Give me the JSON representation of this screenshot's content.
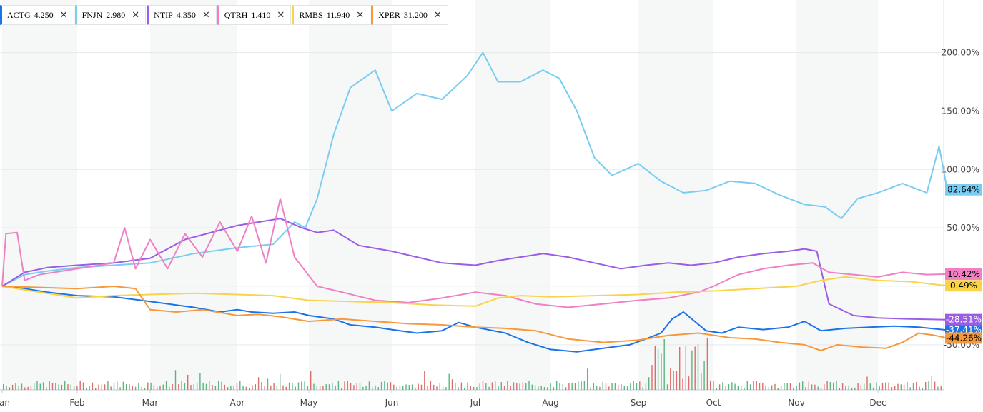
{
  "chart_data": {
    "type": "line",
    "ylim": [
      -60,
      220
    ],
    "y_ticks": [
      -50,
      50,
      100,
      150,
      200
    ],
    "y_tick_labels": [
      "-50.00%",
      "50.00%",
      "100.00%",
      "150.00%",
      "200.00%"
    ],
    "x_months": [
      "Jan",
      "Feb",
      "Mar",
      "Apr",
      "May",
      "Jun",
      "Jul",
      "Aug",
      "Sep",
      "Oct",
      "Nov",
      "Dec"
    ],
    "x_month_labels": [
      "an",
      "Feb",
      "Mar",
      "Apr",
      "May",
      "Jun",
      "Jul",
      "Aug",
      "Sep",
      "Oct",
      "Nov",
      "Dec"
    ],
    "grid": true,
    "legend": "top-left",
    "series": [
      {
        "name": "ACTG",
        "price": "4.250",
        "color": "#1a73e8",
        "end_label": "-37.41%",
        "points": [
          [
            0,
            0
          ],
          [
            0.3,
            -2
          ],
          [
            0.6,
            -5
          ],
          [
            1,
            -8
          ],
          [
            1.5,
            -9
          ],
          [
            2,
            -13
          ],
          [
            2.5,
            -18
          ],
          [
            2.8,
            -22
          ],
          [
            3,
            -20
          ],
          [
            3.2,
            -22
          ],
          [
            3.5,
            -23
          ],
          [
            3.8,
            -22
          ],
          [
            4,
            -25
          ],
          [
            4.3,
            -28
          ],
          [
            4.5,
            -33
          ],
          [
            4.8,
            -35
          ],
          [
            5,
            -37
          ],
          [
            5.3,
            -40
          ],
          [
            5.6,
            -38
          ],
          [
            5.8,
            -31
          ],
          [
            6,
            -35
          ],
          [
            6.4,
            -40
          ],
          [
            6.7,
            -48
          ],
          [
            7,
            -54
          ],
          [
            7.3,
            -56
          ],
          [
            7.6,
            -53
          ],
          [
            7.9,
            -50
          ],
          [
            8.1,
            -45
          ],
          [
            8.3,
            -40
          ],
          [
            8.45,
            -28
          ],
          [
            8.6,
            -22
          ],
          [
            8.75,
            -30
          ],
          [
            8.9,
            -38
          ],
          [
            9.1,
            -40
          ],
          [
            9.3,
            -35
          ],
          [
            9.6,
            -37
          ],
          [
            9.9,
            -35
          ],
          [
            10.1,
            -30
          ],
          [
            10.3,
            -38
          ],
          [
            10.6,
            -36
          ],
          [
            10.9,
            -35
          ],
          [
            11.2,
            -34
          ],
          [
            11.5,
            -35
          ],
          [
            11.85,
            -37.41
          ]
        ]
      },
      {
        "name": "FNJN",
        "price": "2.980",
        "color": "#79cdf2",
        "end_label": "82.64%",
        "points": [
          [
            0,
            0
          ],
          [
            0.3,
            10
          ],
          [
            0.6,
            13
          ],
          [
            1,
            16
          ],
          [
            1.5,
            18
          ],
          [
            2,
            20
          ],
          [
            2.5,
            28
          ],
          [
            3,
            33
          ],
          [
            3.5,
            36
          ],
          [
            3.8,
            55
          ],
          [
            3.95,
            50
          ],
          [
            4.1,
            75
          ],
          [
            4.3,
            130
          ],
          [
            4.5,
            170
          ],
          [
            4.8,
            185
          ],
          [
            5,
            150
          ],
          [
            5.3,
            165
          ],
          [
            5.6,
            160
          ],
          [
            5.9,
            180
          ],
          [
            6.1,
            200
          ],
          [
            6.3,
            175
          ],
          [
            6.6,
            175
          ],
          [
            6.9,
            185
          ],
          [
            7.1,
            178
          ],
          [
            7.3,
            150
          ],
          [
            7.5,
            110
          ],
          [
            7.7,
            95
          ],
          [
            8,
            105
          ],
          [
            8.3,
            90
          ],
          [
            8.6,
            80
          ],
          [
            8.9,
            82
          ],
          [
            9.2,
            90
          ],
          [
            9.5,
            88
          ],
          [
            9.8,
            78
          ],
          [
            10.1,
            70
          ],
          [
            10.35,
            68
          ],
          [
            10.55,
            58
          ],
          [
            10.75,
            75
          ],
          [
            11,
            80
          ],
          [
            11.3,
            88
          ],
          [
            11.6,
            80
          ],
          [
            11.75,
            120
          ],
          [
            11.85,
            82.64
          ]
        ]
      },
      {
        "name": "NTIP",
        "price": "4.350",
        "color": "#9b5de5",
        "end_label": "-28.51%",
        "points": [
          [
            0,
            0
          ],
          [
            0.3,
            12
          ],
          [
            0.6,
            16
          ],
          [
            1,
            18
          ],
          [
            1.5,
            20
          ],
          [
            2,
            24
          ],
          [
            2.4,
            40
          ],
          [
            2.8,
            48
          ],
          [
            3,
            52
          ],
          [
            3.3,
            55
          ],
          [
            3.6,
            58
          ],
          [
            3.9,
            50
          ],
          [
            4.1,
            46
          ],
          [
            4.3,
            48
          ],
          [
            4.6,
            35
          ],
          [
            5,
            30
          ],
          [
            5.3,
            25
          ],
          [
            5.6,
            20
          ],
          [
            6,
            18
          ],
          [
            6.3,
            22
          ],
          [
            6.6,
            25
          ],
          [
            6.9,
            28
          ],
          [
            7.2,
            25
          ],
          [
            7.5,
            20
          ],
          [
            7.8,
            15
          ],
          [
            8.1,
            18
          ],
          [
            8.4,
            20
          ],
          [
            8.7,
            18
          ],
          [
            9,
            20
          ],
          [
            9.3,
            25
          ],
          [
            9.6,
            28
          ],
          [
            9.9,
            30
          ],
          [
            10.1,
            32
          ],
          [
            10.25,
            30
          ],
          [
            10.4,
            -15
          ],
          [
            10.7,
            -25
          ],
          [
            11,
            -27
          ],
          [
            11.4,
            -28
          ],
          [
            11.85,
            -28.51
          ]
        ]
      },
      {
        "name": "QTRH",
        "price": "1.410",
        "color": "#f07fc4",
        "end_label": "10.42%",
        "points": [
          [
            0,
            0
          ],
          [
            0.05,
            45
          ],
          [
            0.2,
            46
          ],
          [
            0.3,
            5
          ],
          [
            0.5,
            10
          ],
          [
            1,
            15
          ],
          [
            1.5,
            20
          ],
          [
            1.65,
            50
          ],
          [
            1.8,
            15
          ],
          [
            2,
            40
          ],
          [
            2.2,
            15
          ],
          [
            2.4,
            45
          ],
          [
            2.6,
            25
          ],
          [
            2.8,
            55
          ],
          [
            3,
            30
          ],
          [
            3.2,
            60
          ],
          [
            3.4,
            20
          ],
          [
            3.6,
            75
          ],
          [
            3.8,
            25
          ],
          [
            4.1,
            0
          ],
          [
            4.4,
            -5
          ],
          [
            4.8,
            -12
          ],
          [
            5.2,
            -14
          ],
          [
            5.6,
            -10
          ],
          [
            6,
            -5
          ],
          [
            6.4,
            -8
          ],
          [
            6.8,
            -15
          ],
          [
            7.2,
            -18
          ],
          [
            7.6,
            -15
          ],
          [
            8,
            -12
          ],
          [
            8.4,
            -10
          ],
          [
            8.8,
            -5
          ],
          [
            9.0,
            0
          ],
          [
            9.3,
            10
          ],
          [
            9.6,
            15
          ],
          [
            9.9,
            18
          ],
          [
            10.2,
            20
          ],
          [
            10.4,
            12
          ],
          [
            10.7,
            10
          ],
          [
            11,
            8
          ],
          [
            11.3,
            12
          ],
          [
            11.6,
            10
          ],
          [
            11.85,
            10.42
          ]
        ]
      },
      {
        "name": "RMBS",
        "price": "11.940",
        "color": "#f9d348",
        "end_label": "0.49%",
        "points": [
          [
            0,
            0
          ],
          [
            0.5,
            -5
          ],
          [
            1,
            -10
          ],
          [
            1.5,
            -8
          ],
          [
            2,
            -7
          ],
          [
            2.5,
            -6
          ],
          [
            3,
            -7
          ],
          [
            3.5,
            -8
          ],
          [
            4,
            -12
          ],
          [
            4.5,
            -13
          ],
          [
            5,
            -14
          ],
          [
            5.5,
            -16
          ],
          [
            6,
            -17
          ],
          [
            6.3,
            -10
          ],
          [
            6.6,
            -8
          ],
          [
            7,
            -9
          ],
          [
            7.5,
            -8
          ],
          [
            8,
            -7
          ],
          [
            8.5,
            -5
          ],
          [
            9,
            -4
          ],
          [
            9.5,
            -2
          ],
          [
            10,
            0
          ],
          [
            10.3,
            5
          ],
          [
            10.6,
            8
          ],
          [
            11,
            5
          ],
          [
            11.4,
            4
          ],
          [
            11.85,
            0.49
          ]
        ]
      },
      {
        "name": "XPER",
        "price": "31.200",
        "color": "#f6983c",
        "end_label": "-44.26%",
        "points": [
          [
            0,
            0
          ],
          [
            0.5,
            -1
          ],
          [
            1,
            -2
          ],
          [
            1.5,
            0
          ],
          [
            1.8,
            -2
          ],
          [
            2,
            -20
          ],
          [
            2.3,
            -22
          ],
          [
            2.6,
            -20
          ],
          [
            3,
            -25
          ],
          [
            3.3,
            -24
          ],
          [
            3.6,
            -26
          ],
          [
            4,
            -30
          ],
          [
            4.4,
            -28
          ],
          [
            4.8,
            -30
          ],
          [
            5.2,
            -32
          ],
          [
            5.6,
            -33
          ],
          [
            6,
            -35
          ],
          [
            6.4,
            -36
          ],
          [
            6.8,
            -38
          ],
          [
            7.2,
            -45
          ],
          [
            7.6,
            -48
          ],
          [
            8,
            -46
          ],
          [
            8.4,
            -42
          ],
          [
            8.8,
            -40
          ],
          [
            9.2,
            -44
          ],
          [
            9.5,
            -45
          ],
          [
            9.8,
            -48
          ],
          [
            10.1,
            -50
          ],
          [
            10.3,
            -55
          ],
          [
            10.5,
            -50
          ],
          [
            10.8,
            -52
          ],
          [
            11.1,
            -53
          ],
          [
            11.3,
            -48
          ],
          [
            11.5,
            -40
          ],
          [
            11.7,
            -42
          ],
          [
            11.85,
            -44.26
          ]
        ]
      }
    ]
  }
}
